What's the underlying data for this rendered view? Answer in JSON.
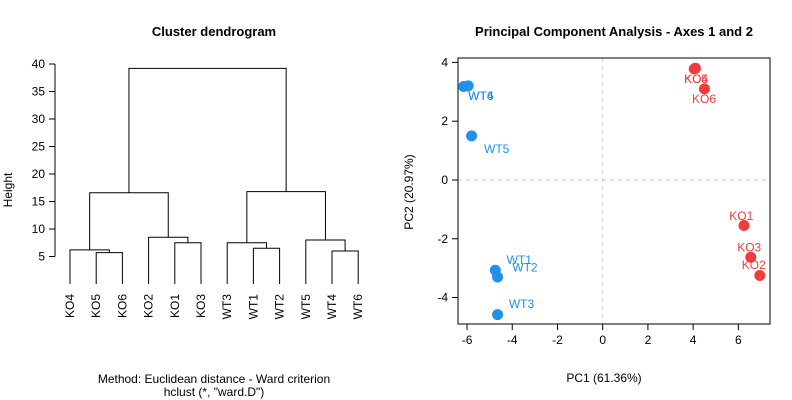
{
  "chart_data": [
    {
      "type": "dendrogram",
      "title": "Cluster dendrogram",
      "ylabel": "Height",
      "subtitle_lines": [
        "Method: Euclidean distance - Ward criterion",
        "hclust (*, \"ward.D\")"
      ],
      "ylim": [
        0,
        40
      ],
      "yticks": [
        5,
        10,
        15,
        20,
        25,
        30,
        35,
        40
      ],
      "leaves": [
        "KO4",
        "KO5",
        "KO6",
        "KO2",
        "KO1",
        "KO3",
        "WT3",
        "WT1",
        "WT2",
        "WT5",
        "WT4",
        "WT6"
      ],
      "merges": [
        {
          "id": "m1",
          "left": "KO5",
          "right": "KO6",
          "height": 5.7
        },
        {
          "id": "m2",
          "left": "KO4",
          "right": "m1",
          "height": 6.2
        },
        {
          "id": "m3",
          "left": "KO1",
          "right": "KO3",
          "height": 7.5
        },
        {
          "id": "m4",
          "left": "KO2",
          "right": "m3",
          "height": 8.5
        },
        {
          "id": "m5",
          "left": "m2",
          "right": "m4",
          "height": 16.6
        },
        {
          "id": "m6",
          "left": "WT1",
          "right": "WT2",
          "height": 6.5
        },
        {
          "id": "m7",
          "left": "WT3",
          "right": "m6",
          "height": 7.5
        },
        {
          "id": "m8",
          "left": "WT4",
          "right": "WT6",
          "height": 6.0
        },
        {
          "id": "m9",
          "left": "WT5",
          "right": "m8",
          "height": 8.0
        },
        {
          "id": "m10",
          "left": "m7",
          "right": "m9",
          "height": 16.8
        },
        {
          "id": "m11",
          "left": "m5",
          "right": "m10",
          "height": 39.2
        }
      ]
    },
    {
      "type": "scatter",
      "title": "Principal Component Analysis - Axes 1 and 2",
      "xlabel": "PC1 (61.36%)",
      "ylabel": "PC2 (20.97%)",
      "xlim": [
        -6.4,
        7.4
      ],
      "ylim": [
        -4.9,
        4.15
      ],
      "xticks": [
        -6,
        -4,
        -2,
        0,
        2,
        4,
        6
      ],
      "yticks": [
        -4,
        -2,
        0,
        2,
        4
      ],
      "reference_lines": {
        "x": 0,
        "y": 0,
        "style": "dashed"
      },
      "colors": {
        "KO": "#f03c3c",
        "WT": "#2090ea",
        "ref": "#cccccc"
      },
      "points": [
        {
          "label": "WT4",
          "group": "WT",
          "x": -5.95,
          "y": 3.2,
          "lx": -5.95,
          "ly": 2.85
        },
        {
          "label": "WT6",
          "group": "WT",
          "x": -6.15,
          "y": 3.18,
          "lx": -5.95,
          "ly": 2.85
        },
        {
          "label": "WT5",
          "group": "WT",
          "x": -5.8,
          "y": 1.5,
          "lx": -5.25,
          "ly": 1.06
        },
        {
          "label": "WT1",
          "group": "WT",
          "x": -4.75,
          "y": -3.07,
          "lx": -4.25,
          "ly": -2.73
        },
        {
          "label": "WT2",
          "group": "WT",
          "x": -4.65,
          "y": -3.3,
          "lx": -4.0,
          "ly": -2.98
        },
        {
          "label": "WT3",
          "group": "WT",
          "x": -4.65,
          "y": -4.58,
          "lx": -4.15,
          "ly": -4.22
        },
        {
          "label": "KO5",
          "group": "KO",
          "x": 4.1,
          "y": 3.8,
          "lx": 3.6,
          "ly": 3.43
        },
        {
          "label": "KO4",
          "group": "KO",
          "x": 4.05,
          "y": 3.78,
          "lx": 3.6,
          "ly": 3.43
        },
        {
          "label": "KO6",
          "group": "KO",
          "x": 4.5,
          "y": 3.1,
          "lx": 3.95,
          "ly": 2.75
        },
        {
          "label": "KO1",
          "group": "KO",
          "x": 6.25,
          "y": -1.55,
          "lx": 5.6,
          "ly": -1.22
        },
        {
          "label": "KO3",
          "group": "KO",
          "x": 6.55,
          "y": -2.63,
          "lx": 5.95,
          "ly": -2.3
        },
        {
          "label": "KO2",
          "group": "KO",
          "x": 6.95,
          "y": -3.25,
          "lx": 6.15,
          "ly": -2.9
        }
      ]
    }
  ]
}
